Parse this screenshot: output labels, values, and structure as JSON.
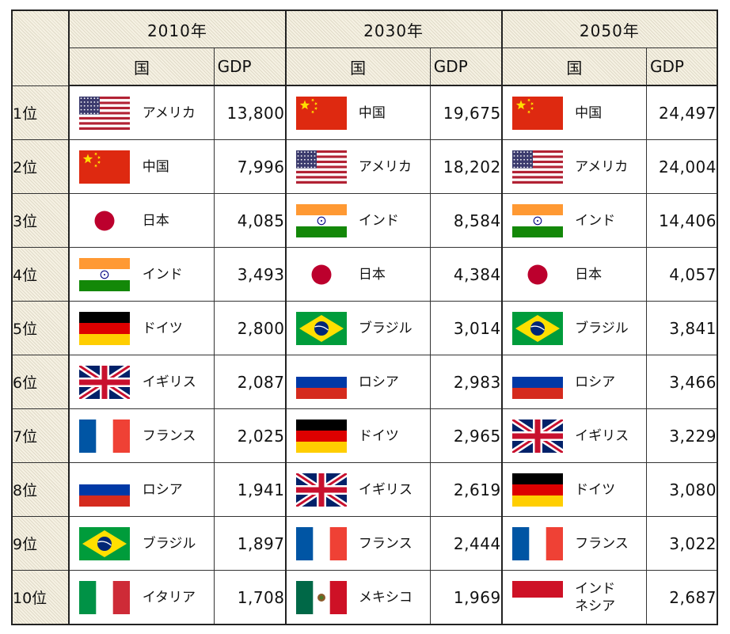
{
  "years": [
    "2010年",
    "2030年",
    "2050年"
  ],
  "col_headers": {
    "country": "国",
    "gdp": "GDP"
  },
  "rows": [
    {
      "rank": "1位",
      "y2010": {
        "flag": "usa-flag",
        "name": "アメリカ",
        "gdp": "13,800"
      },
      "y2030": {
        "flag": "china-flag",
        "name": "中国",
        "gdp": "19,675"
      },
      "y2050": {
        "flag": "china-flag",
        "name": "中国",
        "gdp": "24,497"
      }
    },
    {
      "rank": "2位",
      "y2010": {
        "flag": "china-flag",
        "name": "中国",
        "gdp": "7,996"
      },
      "y2030": {
        "flag": "usa-flag",
        "name": "アメリカ",
        "gdp": "18,202"
      },
      "y2050": {
        "flag": "usa-flag",
        "name": "アメリカ",
        "gdp": "24,004"
      }
    },
    {
      "rank": "3位",
      "y2010": {
        "flag": "japan-flag",
        "name": "日本",
        "gdp": "4,085"
      },
      "y2030": {
        "flag": "india-flag",
        "name": "インド",
        "gdp": "8,584"
      },
      "y2050": {
        "flag": "india-flag",
        "name": "インド",
        "gdp": "14,406"
      }
    },
    {
      "rank": "4位",
      "y2010": {
        "flag": "india-flag",
        "name": "インド",
        "gdp": "3,493"
      },
      "y2030": {
        "flag": "japan-flag",
        "name": "日本",
        "gdp": "4,384"
      },
      "y2050": {
        "flag": "japan-flag",
        "name": "日本",
        "gdp": "4,057"
      }
    },
    {
      "rank": "5位",
      "y2010": {
        "flag": "germany-flag",
        "name": "ドイツ",
        "gdp": "2,800"
      },
      "y2030": {
        "flag": "brazil-flag",
        "name": "ブラジル",
        "gdp": "3,014"
      },
      "y2050": {
        "flag": "brazil-flag",
        "name": "ブラジル",
        "gdp": "3,841"
      }
    },
    {
      "rank": "6位",
      "y2010": {
        "flag": "uk-flag",
        "name": "イギリス",
        "gdp": "2,087"
      },
      "y2030": {
        "flag": "russia-flag",
        "name": "ロシア",
        "gdp": "2,983"
      },
      "y2050": {
        "flag": "russia-flag",
        "name": "ロシア",
        "gdp": "3,466"
      }
    },
    {
      "rank": "7位",
      "y2010": {
        "flag": "france-flag",
        "name": "フランス",
        "gdp": "2,025"
      },
      "y2030": {
        "flag": "germany-flag",
        "name": "ドイツ",
        "gdp": "2,965"
      },
      "y2050": {
        "flag": "uk-flag",
        "name": "イギリス",
        "gdp": "3,229"
      }
    },
    {
      "rank": "8位",
      "y2010": {
        "flag": "russia-flag",
        "name": "ロシア",
        "gdp": "1,941"
      },
      "y2030": {
        "flag": "uk-flag",
        "name": "イギリス",
        "gdp": "2,619"
      },
      "y2050": {
        "flag": "germany-flag",
        "name": "ドイツ",
        "gdp": "3,080"
      }
    },
    {
      "rank": "9位",
      "y2010": {
        "flag": "brazil-flag",
        "name": "ブラジル",
        "gdp": "1,897"
      },
      "y2030": {
        "flag": "france-flag",
        "name": "フランス",
        "gdp": "2,444"
      },
      "y2050": {
        "flag": "france-flag",
        "name": "フランス",
        "gdp": "3,022"
      }
    },
    {
      "rank": "10位",
      "y2010": {
        "flag": "italy-flag",
        "name": "イタリア",
        "gdp": "1,708"
      },
      "y2030": {
        "flag": "mexico-flag",
        "name": "メキシコ",
        "gdp": "1,969"
      },
      "y2050": {
        "flag": "indonesia-flag",
        "name": "インド\nネシア",
        "gdp": "2,687"
      }
    }
  ]
}
